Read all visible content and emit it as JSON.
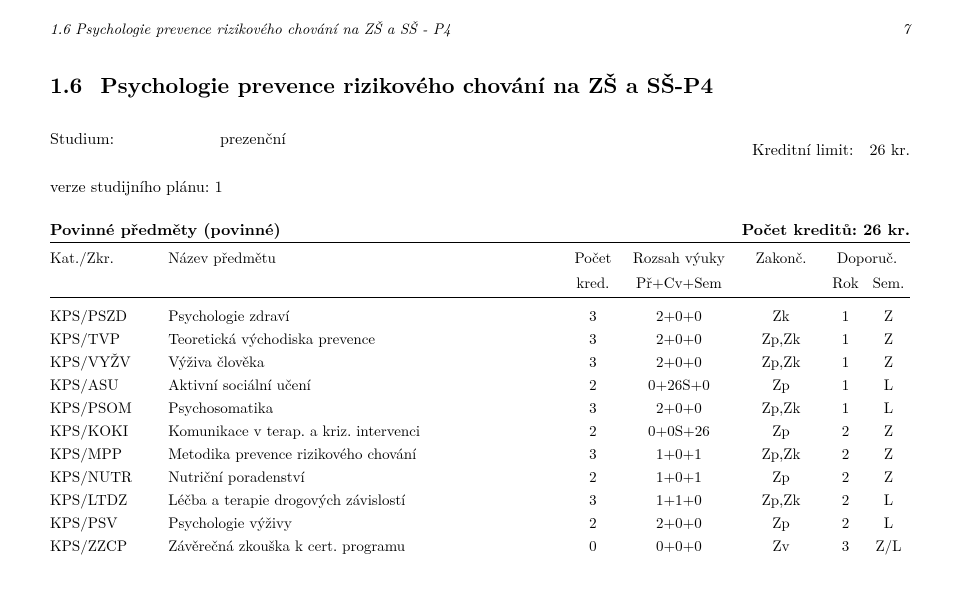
{
  "header": {
    "running": "1.6  Psychologie prevence rizikového chování na ZŠ a SŠ - P4",
    "page_num": "7"
  },
  "title": {
    "num": "1.6",
    "text": "Psychologie prevence rizikového chování na ZŠ a SŠ-P4"
  },
  "study": {
    "label": "Studium:",
    "value": "prezenční"
  },
  "credit_limit": {
    "label": "Kreditní limit:",
    "value": "26 kr."
  },
  "plan": "verze studijního plánu: 1",
  "group": {
    "left": "Povinné předměty (povinné)",
    "right": "Počet kreditů: 26 kr."
  },
  "thead": {
    "kat": "Kat./Zkr.",
    "name": "Název předmětu",
    "kred": "Počet",
    "kred2": "kred.",
    "roz": "Rozsah výuky",
    "roz2": "Př+Cv+Sem",
    "zak": "Zakonč.",
    "dop": "Doporuč.",
    "rok": "Rok",
    "sem": "Sem."
  },
  "rows": [
    {
      "kat": "KPS/PSZD",
      "name": "Psychologie zdraví",
      "kred": "3",
      "roz": "2+0+0",
      "zak": "Zk",
      "rok": "1",
      "sem": "Z"
    },
    {
      "kat": "KPS/TVP",
      "name": "Teoretická východiska prevence",
      "kred": "3",
      "roz": "2+0+0",
      "zak": "Zp,Zk",
      "rok": "1",
      "sem": "Z"
    },
    {
      "kat": "KPS/VYŽV",
      "name": "Výživa člověka",
      "kred": "3",
      "roz": "2+0+0",
      "zak": "Zp,Zk",
      "rok": "1",
      "sem": "Z"
    },
    {
      "kat": "KPS/ASU",
      "name": "Aktivní sociální učení",
      "kred": "2",
      "roz": "0+26S+0",
      "zak": "Zp",
      "rok": "1",
      "sem": "L"
    },
    {
      "kat": "KPS/PSOM",
      "name": "Psychosomatika",
      "kred": "3",
      "roz": "2+0+0",
      "zak": "Zp,Zk",
      "rok": "1",
      "sem": "L"
    },
    {
      "kat": "KPS/KOKI",
      "name": "Komunikace v terap. a kriz. intervenci",
      "kred": "2",
      "roz": "0+0S+26",
      "zak": "Zp",
      "rok": "2",
      "sem": "Z"
    },
    {
      "kat": "KPS/MPP",
      "name": "Metodika prevence rizikového chování",
      "kred": "3",
      "roz": "1+0+1",
      "zak": "Zp,Zk",
      "rok": "2",
      "sem": "Z"
    },
    {
      "kat": "KPS/NUTR",
      "name": "Nutriční poradenství",
      "kred": "2",
      "roz": "1+0+1",
      "zak": "Zp",
      "rok": "2",
      "sem": "Z"
    },
    {
      "kat": "KPS/LTDZ",
      "name": "Léčba a terapie drogových závislostí",
      "kred": "3",
      "roz": "1+1+0",
      "zak": "Zp,Zk",
      "rok": "2",
      "sem": "L"
    },
    {
      "kat": "KPS/PSV",
      "name": "Psychologie výživy",
      "kred": "2",
      "roz": "2+0+0",
      "zak": "Zp",
      "rok": "2",
      "sem": "L"
    },
    {
      "kat": "KPS/ZZCP",
      "name": "Závěrečná zkouška k cert. programu",
      "kred": "0",
      "roz": "0+0+0",
      "zak": "Zv",
      "rok": "3",
      "sem": "Z/L"
    }
  ]
}
